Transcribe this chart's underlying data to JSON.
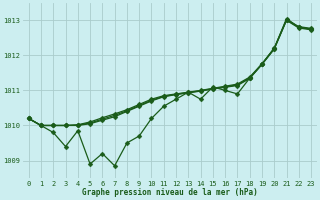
{
  "title": "Graphe pression niveau de la mer (hPa)",
  "bg_color": "#cceef0",
  "grid_color": "#aacccc",
  "line_color": "#1a5c1a",
  "xlim": [
    -0.5,
    23.5
  ],
  "ylim": [
    1008.5,
    1013.5
  ],
  "yticks": [
    1009,
    1010,
    1011,
    1012,
    1013
  ],
  "xticks": [
    0,
    1,
    2,
    3,
    4,
    5,
    6,
    7,
    8,
    9,
    10,
    11,
    12,
    13,
    14,
    15,
    16,
    17,
    18,
    19,
    20,
    21,
    22,
    23
  ],
  "series_jagged": [
    1010.2,
    1010.0,
    1009.8,
    1009.4,
    1009.85,
    1008.9,
    1009.2,
    1008.85,
    1009.5,
    1009.7,
    1010.2,
    1010.55,
    1010.75,
    1010.95,
    1010.75,
    1011.1,
    1011.0,
    1010.9,
    1011.35,
    1011.75,
    1012.2,
    1013.05,
    1012.8,
    1012.75
  ],
  "series_smooth1": [
    1010.2,
    1010.0,
    1010.0,
    1010.0,
    1010.0,
    1010.05,
    1010.15,
    1010.25,
    1010.4,
    1010.55,
    1010.7,
    1010.82,
    1010.88,
    1010.93,
    1010.98,
    1011.04,
    1011.09,
    1011.14,
    1011.34,
    1011.74,
    1012.18,
    1013.0,
    1012.78,
    1012.73
  ],
  "series_smooth2": [
    1010.2,
    1010.0,
    1010.0,
    1010.0,
    1010.02,
    1010.1,
    1010.22,
    1010.33,
    1010.45,
    1010.6,
    1010.75,
    1010.85,
    1010.9,
    1010.95,
    1011.0,
    1011.06,
    1011.12,
    1011.18,
    1011.38,
    1011.76,
    1012.21,
    1013.02,
    1012.82,
    1012.77
  ],
  "series_smooth3": [
    1010.2,
    1010.0,
    1010.0,
    1010.0,
    1010.01,
    1010.07,
    1010.18,
    1010.29,
    1010.42,
    1010.57,
    1010.72,
    1010.83,
    1010.89,
    1010.94,
    1010.99,
    1011.05,
    1011.1,
    1011.16,
    1011.36,
    1011.75,
    1012.19,
    1013.01,
    1012.8,
    1012.75
  ],
  "marker": "D",
  "markersize": 2.5,
  "linewidth": 0.9,
  "figsize": [
    3.2,
    2.0
  ],
  "dpi": 100,
  "title_fontsize": 5.5,
  "tick_fontsize": 5.0
}
